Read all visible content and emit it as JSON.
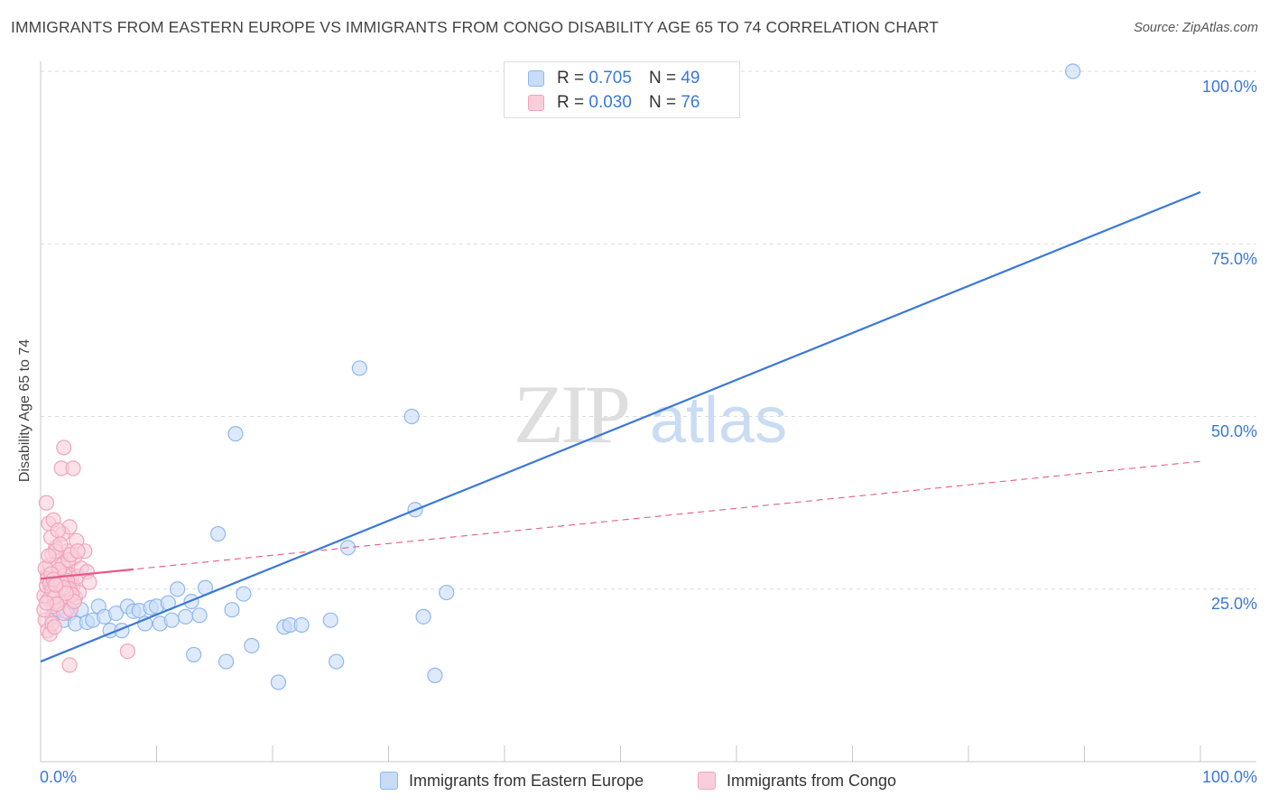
{
  "title": "IMMIGRANTS FROM EASTERN EUROPE VS IMMIGRANTS FROM CONGO DISABILITY AGE 65 TO 74 CORRELATION CHART",
  "source": "Source: ZipAtlas.com",
  "watermark": {
    "zip": "ZIP",
    "atlas": "atlas"
  },
  "legend_top": [
    {
      "r_label": "R =",
      "r_value": "0.705",
      "n_label": "N =",
      "n_value": "49"
    },
    {
      "r_label": "R =",
      "r_value": "0.030",
      "n_label": "N =",
      "n_value": "76"
    }
  ],
  "legend_bottom": [
    {
      "label": "Immigrants from Eastern Europe"
    },
    {
      "label": "Immigrants from Congo"
    }
  ],
  "chart_data": {
    "type": "scatter",
    "title": "IMMIGRANTS FROM EASTERN EUROPE VS IMMIGRANTS FROM CONGO DISABILITY AGE 65 TO 74 CORRELATION CHART",
    "xlabel": "",
    "ylabel": "Disability Age 65 to 74",
    "xlim": [
      0,
      100
    ],
    "ylim": [
      0,
      100
    ],
    "x_tick_labels": [
      "0.0%",
      "100.0%"
    ],
    "y_ticks": [
      25,
      50,
      75,
      100
    ],
    "y_tick_labels": [
      "25.0%",
      "50.0%",
      "75.0%",
      "100.0%"
    ],
    "grid": true,
    "series": [
      {
        "name": "Immigrants from Eastern Europe",
        "color": "#8fb8ef",
        "fill": "#c8dcf6",
        "line_color": "#3a78d8",
        "trend": {
          "x": [
            0,
            100
          ],
          "y": [
            14.5,
            82.5
          ],
          "style": "solid"
        },
        "points": [
          [
            1.0,
            21.0
          ],
          [
            1.5,
            22.0
          ],
          [
            2.0,
            20.5
          ],
          [
            2.5,
            21.5
          ],
          [
            3.0,
            20.0
          ],
          [
            3.5,
            22.0
          ],
          [
            4.0,
            20.2
          ],
          [
            4.5,
            20.5
          ],
          [
            5.0,
            22.5
          ],
          [
            5.5,
            21.0
          ],
          [
            6.0,
            19.0
          ],
          [
            6.5,
            21.5
          ],
          [
            7.0,
            19.0
          ],
          [
            7.5,
            22.5
          ],
          [
            8.0,
            21.8
          ],
          [
            8.5,
            21.9
          ],
          [
            9.0,
            20.0
          ],
          [
            9.5,
            22.3
          ],
          [
            10.0,
            22.5
          ],
          [
            10.3,
            20.0
          ],
          [
            11.0,
            23.0
          ],
          [
            11.3,
            20.5
          ],
          [
            11.8,
            25.0
          ],
          [
            12.5,
            21.0
          ],
          [
            13.0,
            23.2
          ],
          [
            13.2,
            15.5
          ],
          [
            13.7,
            21.2
          ],
          [
            14.2,
            25.2
          ],
          [
            15.3,
            33.0
          ],
          [
            16.0,
            14.5
          ],
          [
            16.5,
            22.0
          ],
          [
            16.8,
            47.5
          ],
          [
            17.5,
            24.3
          ],
          [
            18.2,
            16.8
          ],
          [
            20.5,
            11.5
          ],
          [
            21.0,
            19.5
          ],
          [
            21.5,
            19.8
          ],
          [
            22.5,
            19.8
          ],
          [
            25.0,
            20.5
          ],
          [
            25.5,
            14.5
          ],
          [
            26.5,
            31.0
          ],
          [
            27.5,
            57.0
          ],
          [
            32.0,
            50.0
          ],
          [
            32.3,
            36.5
          ],
          [
            33.0,
            21.0
          ],
          [
            34.0,
            12.5
          ],
          [
            35.0,
            24.5
          ],
          [
            89.0,
            100.0
          ],
          [
            2.2,
            21.8
          ]
        ]
      },
      {
        "name": "Immigrants from Congo",
        "color": "#f2a3bc",
        "fill": "#f8cedb",
        "line_color": "#e8588a",
        "trend": {
          "x": [
            0,
            100
          ],
          "y": [
            26.5,
            43.5
          ],
          "style": "dashed",
          "solid_until": 8
        },
        "points": [
          [
            0.3,
            24.0
          ],
          [
            0.5,
            25.5
          ],
          [
            0.6,
            27.0
          ],
          [
            0.7,
            23.5
          ],
          [
            0.8,
            28.5
          ],
          [
            0.9,
            26.0
          ],
          [
            1.0,
            30.0
          ],
          [
            1.1,
            22.5
          ],
          [
            1.2,
            24.8
          ],
          [
            1.3,
            31.0
          ],
          [
            1.4,
            26.5
          ],
          [
            1.5,
            29.0
          ],
          [
            1.6,
            23.0
          ],
          [
            1.7,
            27.5
          ],
          [
            1.8,
            25.0
          ],
          [
            1.9,
            33.0
          ],
          [
            2.0,
            21.5
          ],
          [
            2.1,
            28.0
          ],
          [
            2.2,
            24.0
          ],
          [
            2.3,
            30.5
          ],
          [
            2.4,
            26.0
          ],
          [
            2.5,
            34.0
          ],
          [
            2.6,
            22.0
          ],
          [
            2.7,
            27.0
          ],
          [
            2.8,
            25.5
          ],
          [
            2.9,
            29.5
          ],
          [
            3.0,
            23.8
          ],
          [
            3.1,
            32.0
          ],
          [
            3.2,
            26.8
          ],
          [
            3.3,
            24.5
          ],
          [
            0.4,
            20.5
          ],
          [
            0.6,
            19.0
          ],
          [
            0.8,
            18.5
          ],
          [
            1.0,
            20.0
          ],
          [
            1.2,
            19.5
          ],
          [
            0.5,
            37.5
          ],
          [
            0.7,
            34.5
          ],
          [
            0.9,
            32.5
          ],
          [
            1.1,
            35.0
          ],
          [
            1.3,
            30.5
          ],
          [
            1.5,
            33.5
          ],
          [
            1.7,
            31.5
          ],
          [
            1.9,
            28.5
          ],
          [
            2.1,
            27.0
          ],
          [
            2.3,
            26.2
          ],
          [
            2.5,
            25.0
          ],
          [
            2.7,
            24.2
          ],
          [
            2.9,
            23.2
          ],
          [
            0.4,
            28.0
          ],
          [
            0.6,
            26.5
          ],
          [
            0.8,
            25.8
          ],
          [
            1.0,
            24.8
          ],
          [
            1.2,
            23.8
          ],
          [
            1.4,
            22.8
          ],
          [
            1.6,
            27.8
          ],
          [
            1.8,
            26.0
          ],
          [
            2.0,
            25.2
          ],
          [
            2.2,
            24.4
          ],
          [
            2.4,
            29.2
          ],
          [
            2.6,
            30.0
          ],
          [
            0.3,
            22.0
          ],
          [
            0.5,
            23.0
          ],
          [
            0.7,
            29.8
          ],
          [
            0.9,
            27.2
          ],
          [
            1.1,
            26.4
          ],
          [
            1.3,
            25.6
          ],
          [
            3.5,
            28.0
          ],
          [
            3.8,
            30.5
          ],
          [
            4.0,
            27.5
          ],
          [
            4.2,
            26.0
          ],
          [
            2.0,
            45.5
          ],
          [
            1.8,
            42.5
          ],
          [
            2.8,
            42.5
          ],
          [
            3.2,
            30.5
          ],
          [
            2.5,
            14.0
          ],
          [
            7.5,
            16.0
          ]
        ]
      }
    ]
  }
}
